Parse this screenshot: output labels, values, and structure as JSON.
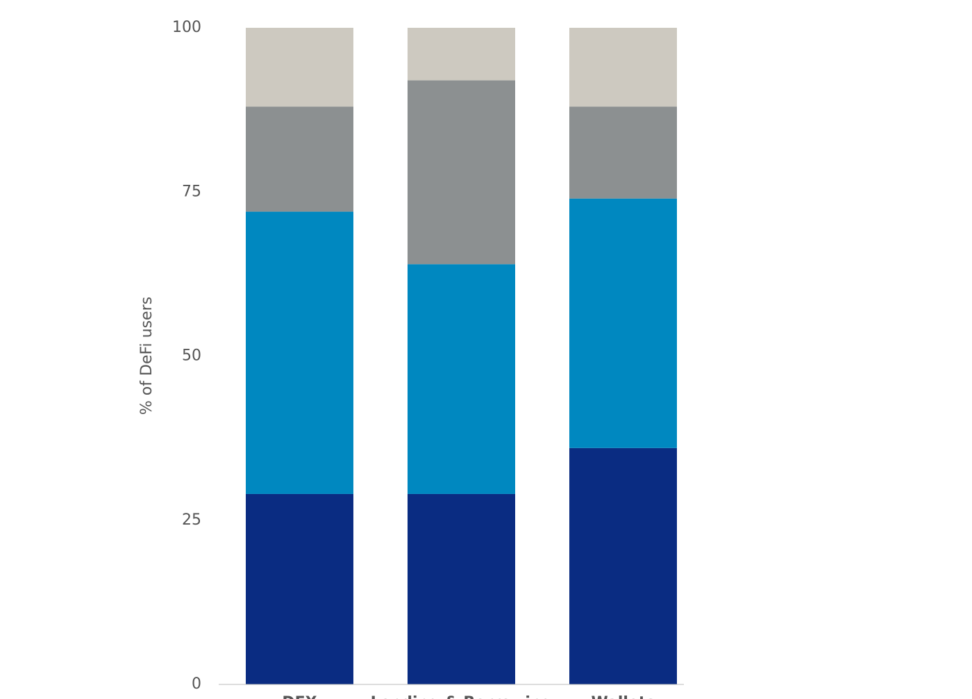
{
  "chart_data": {
    "type": "stacked_bar",
    "y_label": "% of DeFi users",
    "categories": [
      "DEX",
      "Lending & Borrowing",
      "Wallets"
    ],
    "series": [
      {
        "color": "#0a2c82",
        "values": [
          29,
          29,
          36
        ]
      },
      {
        "color": "#0088c0",
        "values": [
          43,
          35,
          38
        ]
      },
      {
        "color": "#8c9091",
        "values": [
          16,
          28,
          14
        ]
      },
      {
        "color": "#cdc9c0",
        "values": [
          12,
          8,
          12
        ]
      }
    ],
    "ylim": [
      0,
      100
    ],
    "yticks": [
      0,
      25,
      50,
      75,
      100
    ]
  }
}
